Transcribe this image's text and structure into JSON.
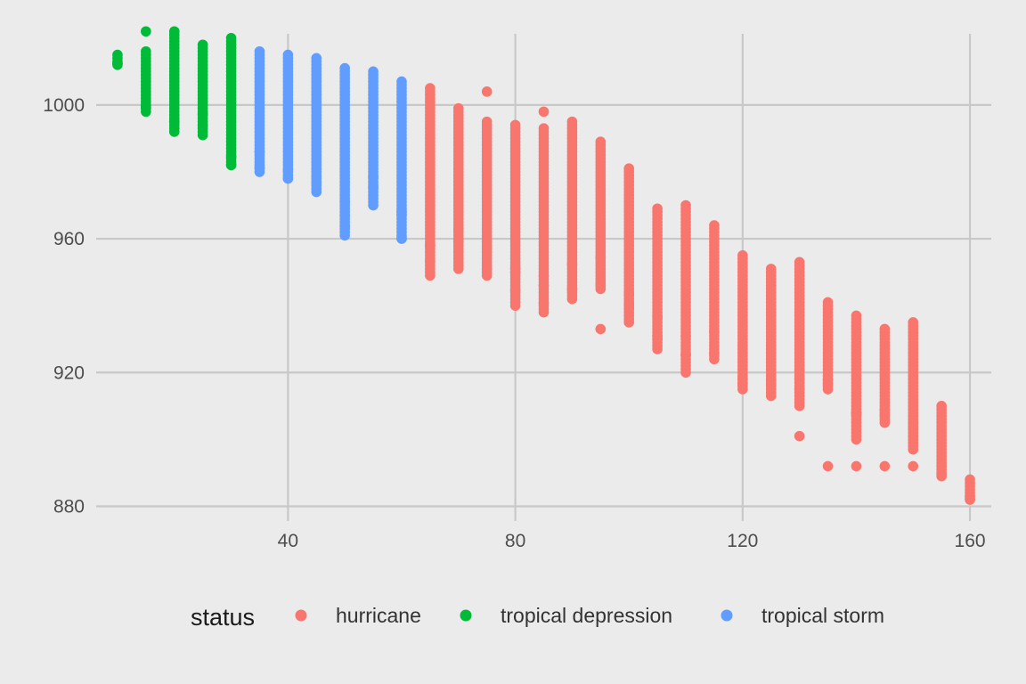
{
  "chart_data": {
    "type": "scatter",
    "title": "",
    "xlabel": "",
    "ylabel": "",
    "xlim": [
      6.25,
      163.75
    ],
    "ylim": [
      875.6,
      1023.4
    ],
    "x_ticks": [
      40,
      80,
      120,
      160
    ],
    "y_ticks": [
      880,
      920,
      960,
      1000
    ],
    "grid": true,
    "legend": {
      "title": "status",
      "position": "bottom",
      "entries": [
        {
          "label": "hurricane",
          "color": "#F8766D"
        },
        {
          "label": "tropical depression",
          "color": "#00BA38"
        },
        {
          "label": "tropical storm",
          "color": "#619CFF"
        }
      ]
    },
    "series": [
      {
        "name": "hurricane",
        "color": "#F8766D",
        "columns": [
          {
            "x": 65,
            "ymin": 949,
            "ymax": 1005,
            "extra": []
          },
          {
            "x": 70,
            "ymin": 951,
            "ymax": 999,
            "extra": []
          },
          {
            "x": 75,
            "ymin": 949,
            "ymax": 995,
            "extra": [
              1004
            ]
          },
          {
            "x": 80,
            "ymin": 940,
            "ymax": 994,
            "extra": []
          },
          {
            "x": 85,
            "ymin": 938,
            "ymax": 993,
            "extra": [
              998
            ]
          },
          {
            "x": 90,
            "ymin": 942,
            "ymax": 995,
            "extra": []
          },
          {
            "x": 95,
            "ymin": 945,
            "ymax": 989,
            "extra": [
              933
            ]
          },
          {
            "x": 100,
            "ymin": 935,
            "ymax": 981,
            "extra": []
          },
          {
            "x": 105,
            "ymin": 927,
            "ymax": 969,
            "extra": []
          },
          {
            "x": 110,
            "ymin": 920,
            "ymax": 970,
            "extra": []
          },
          {
            "x": 115,
            "ymin": 924,
            "ymax": 964,
            "extra": []
          },
          {
            "x": 120,
            "ymin": 915,
            "ymax": 955,
            "extra": []
          },
          {
            "x": 125,
            "ymin": 913,
            "ymax": 951,
            "extra": []
          },
          {
            "x": 130,
            "ymin": 910,
            "ymax": 953,
            "extra": [
              901
            ]
          },
          {
            "x": 135,
            "ymin": 915,
            "ymax": 941,
            "extra": [
              892
            ]
          },
          {
            "x": 140,
            "ymin": 900,
            "ymax": 937,
            "extra": [
              892
            ]
          },
          {
            "x": 145,
            "ymin": 905,
            "ymax": 933,
            "extra": [
              892
            ]
          },
          {
            "x": 150,
            "ymin": 897,
            "ymax": 935,
            "extra": [
              892
            ]
          },
          {
            "x": 155,
            "ymin": 889,
            "ymax": 910,
            "extra": []
          },
          {
            "x": 160,
            "ymin": 882,
            "ymax": 888,
            "extra": []
          }
        ]
      },
      {
        "name": "tropical depression",
        "color": "#00BA38",
        "columns": [
          {
            "x": 10,
            "ymin": 1012,
            "ymax": 1015,
            "extra": []
          },
          {
            "x": 15,
            "ymin": 998,
            "ymax": 1016,
            "extra": [
              1022
            ]
          },
          {
            "x": 20,
            "ymin": 992,
            "ymax": 1022,
            "extra": []
          },
          {
            "x": 25,
            "ymin": 991,
            "ymax": 1018,
            "extra": []
          },
          {
            "x": 30,
            "ymin": 982,
            "ymax": 1020,
            "extra": []
          }
        ]
      },
      {
        "name": "tropical storm",
        "color": "#619CFF",
        "columns": [
          {
            "x": 35,
            "ymin": 980,
            "ymax": 1016,
            "extra": []
          },
          {
            "x": 40,
            "ymin": 978,
            "ymax": 1015,
            "extra": []
          },
          {
            "x": 45,
            "ymin": 974,
            "ymax": 1014,
            "extra": []
          },
          {
            "x": 50,
            "ymin": 961,
            "ymax": 1011,
            "extra": []
          },
          {
            "x": 55,
            "ymin": 970,
            "ymax": 1010,
            "extra": []
          },
          {
            "x": 60,
            "ymin": 960,
            "ymax": 1007,
            "extra": []
          }
        ]
      }
    ]
  }
}
